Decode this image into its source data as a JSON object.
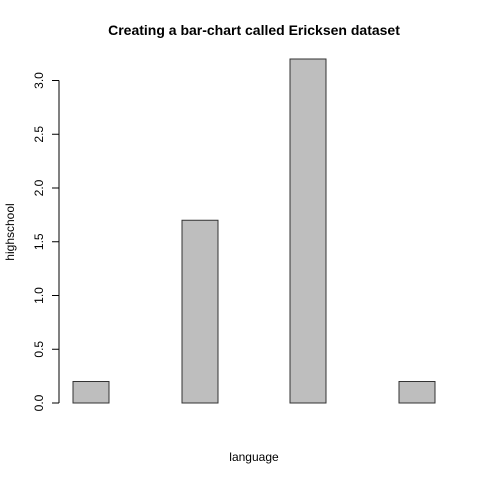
{
  "chart_data": {
    "type": "bar",
    "title": "Creating a bar-chart called Ericksen dataset",
    "xlabel": "language",
    "ylabel": "highschool",
    "categories": [
      "",
      "",
      "",
      ""
    ],
    "values": [
      0.2,
      1.7,
      3.2,
      0.2
    ],
    "ylim": [
      0,
      3.2
    ],
    "yticks": [
      "0.0",
      "0.5",
      "1.0",
      "1.5",
      "2.0",
      "2.5",
      "3.0"
    ],
    "ytick_values": [
      0.0,
      0.5,
      1.0,
      1.5,
      2.0,
      2.5,
      3.0
    ],
    "grid": false,
    "legend": "none",
    "colors": {
      "bar_fill": "#bebebe",
      "bar_stroke": "#333333",
      "axis": "#000000"
    }
  }
}
